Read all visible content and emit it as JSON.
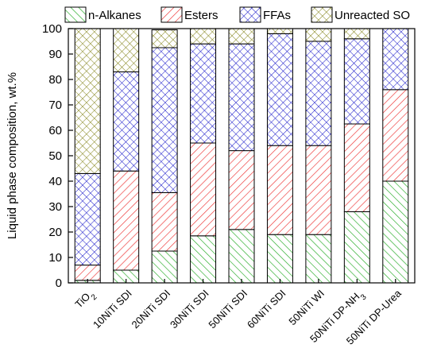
{
  "chart_data": {
    "type": "bar",
    "stacked": true,
    "categories": [
      "TiO2",
      "10NiTi SDI",
      "20NiTi SDI",
      "30NiTi SDI",
      "50NiTi SDI",
      "60NiTi SDI",
      "50NiTi WI",
      "50NiTi DP-NH3",
      "50NiTi DP-Urea"
    ],
    "series": [
      {
        "name": "n-Alkanes",
        "color": "#22aa22",
        "pattern": "diag-forward",
        "values": [
          1,
          5,
          12.5,
          18.5,
          21,
          19,
          19,
          28,
          40
        ]
      },
      {
        "name": "Esters",
        "color": "#ee3333",
        "pattern": "diag-back",
        "values": [
          6,
          39,
          23,
          36.5,
          31,
          35,
          35,
          34.5,
          36
        ]
      },
      {
        "name": "FFAs",
        "color": "#2222cc",
        "pattern": "cross",
        "values": [
          36,
          39,
          57,
          39,
          42,
          44,
          41,
          33.5,
          24
        ]
      },
      {
        "name": "Unreacted SO",
        "color": "#888822",
        "pattern": "cross",
        "values": [
          57,
          17,
          7,
          6,
          6,
          2,
          5,
          4,
          0
        ]
      }
    ],
    "ylabel": "Liquid phase composition, wt.%",
    "xlabel": "",
    "ylim": [
      0,
      100
    ],
    "yticks": [
      0,
      10,
      20,
      30,
      40,
      50,
      60,
      70,
      80,
      90,
      100
    ],
    "grid": false,
    "legend_position": "top"
  }
}
